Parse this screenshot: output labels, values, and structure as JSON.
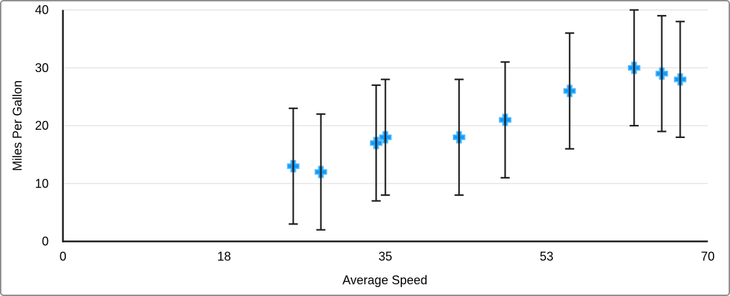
{
  "chart_data": {
    "type": "scatter",
    "title": "",
    "xlabel": "Average Speed",
    "ylabel": "Miles Per Gallon",
    "xlim": [
      0,
      70
    ],
    "ylim": [
      0,
      40
    ],
    "grid": "horizontal gridlines at each y tick, no vertical gridlines",
    "legend": "none",
    "xticks": [
      {
        "pos": 0,
        "label": "0"
      },
      {
        "pos": 17.5,
        "label": "18"
      },
      {
        "pos": 35,
        "label": "35"
      },
      {
        "pos": 52.5,
        "label": "53"
      },
      {
        "pos": 70,
        "label": "70"
      }
    ],
    "yticks": [
      {
        "pos": 0,
        "label": "0"
      },
      {
        "pos": 10,
        "label": "10"
      },
      {
        "pos": 20,
        "label": "20"
      },
      {
        "pos": 30,
        "label": "30"
      },
      {
        "pos": 40,
        "label": "40"
      }
    ],
    "series": [
      {
        "name": "Miles Per Gallon",
        "marker": "plus",
        "error_bars": {
          "type": "fixed",
          "value": 10,
          "direction": "both",
          "caps": true
        },
        "points": [
          {
            "x": 25,
            "y": 13
          },
          {
            "x": 28,
            "y": 12
          },
          {
            "x": 34,
            "y": 17
          },
          {
            "x": 35,
            "y": 18
          },
          {
            "x": 43,
            "y": 18
          },
          {
            "x": 48,
            "y": 21
          },
          {
            "x": 55,
            "y": 26
          },
          {
            "x": 62,
            "y": 30
          },
          {
            "x": 65,
            "y": 29
          },
          {
            "x": 67,
            "y": 28
          }
        ]
      }
    ],
    "colors": {
      "marker_fill": "#119BFA",
      "marker_stroke": "#5BBDFD",
      "error_bar": "#1b1b1b",
      "axis": "#1c1c1c",
      "gridline": "#e0e0e0",
      "text": "#000000"
    }
  }
}
